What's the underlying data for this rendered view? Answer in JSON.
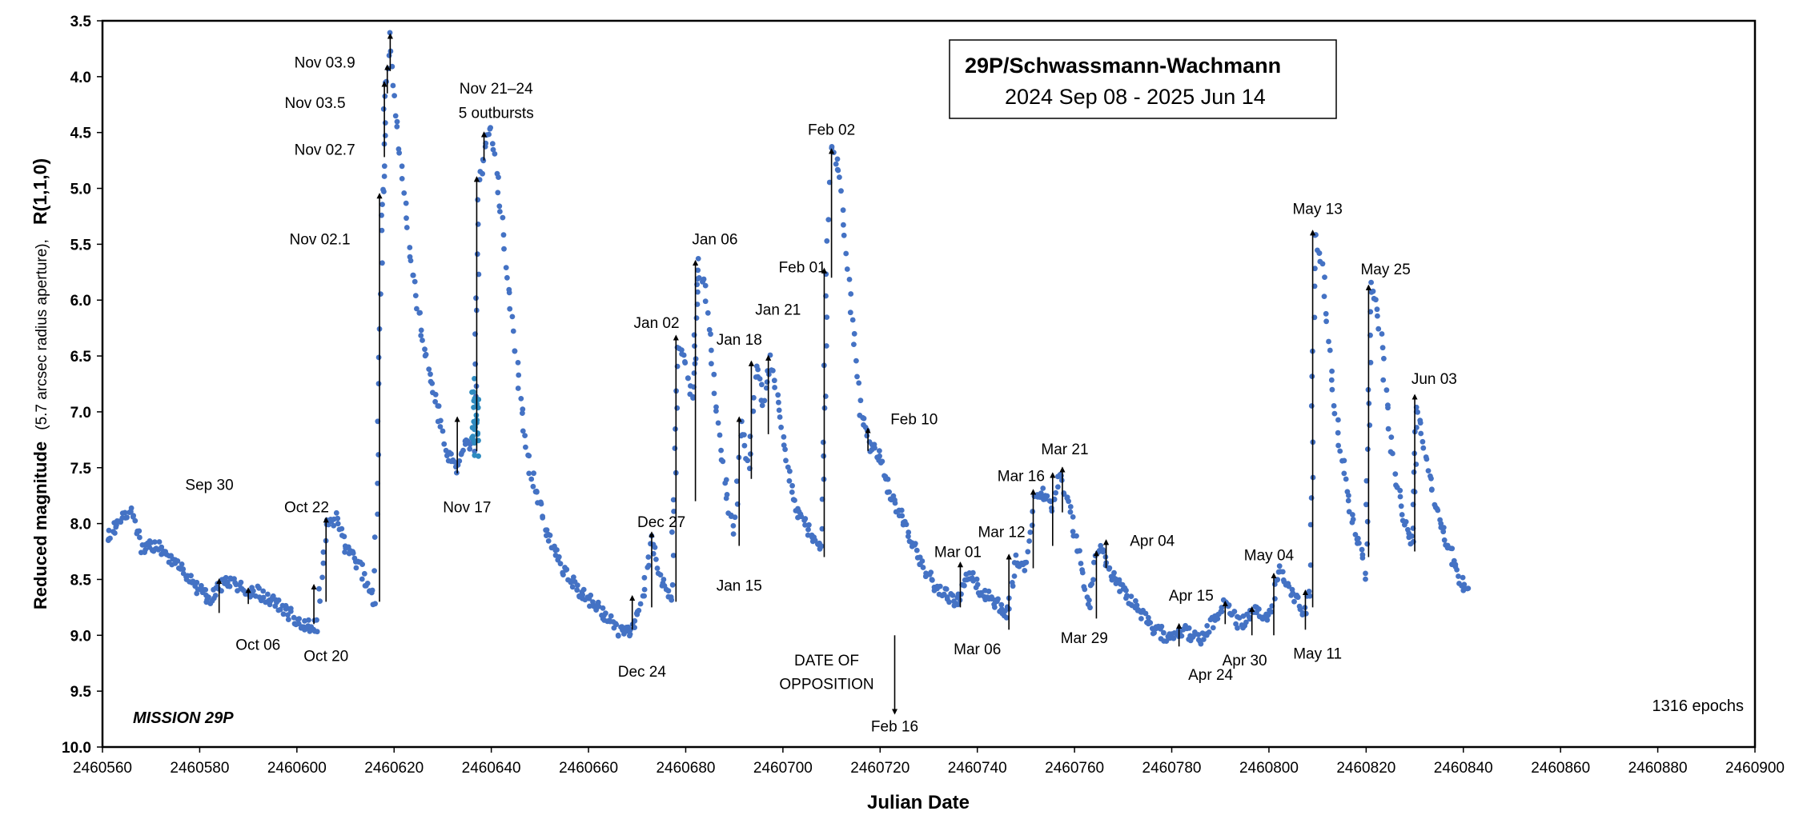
{
  "chart_data": {
    "type": "scatter",
    "title": "29P/Schwassmann-Wachmann",
    "subtitle": "2024 Sep 08 - 2025 Jun 14",
    "xlabel": "Julian Date",
    "ylabel_main": "Reduced magnitude",
    "ylabel_sub": "(5.7 arcsec radius aperture),",
    "ylabel_band": "R(1,1,0)",
    "xlim": [
      2460560,
      2460900
    ],
    "ylim": [
      10.0,
      3.5
    ],
    "y_inverted": true,
    "x_ticks": [
      2460560,
      2460580,
      2460600,
      2460620,
      2460640,
      2460660,
      2460680,
      2460700,
      2460720,
      2460740,
      2460760,
      2460780,
      2460800,
      2460820,
      2460840,
      2460860,
      2460880,
      2460900
    ],
    "y_ticks": [
      "3.5",
      "4.0",
      "4.5",
      "5.0",
      "5.5",
      "6.0",
      "6.5",
      "7.0",
      "7.5",
      "8.0",
      "8.5",
      "9.0",
      "9.5",
      "10.0"
    ],
    "grid": false,
    "epochs_label": "1316  epochs",
    "mission_label": "MISSION 29P",
    "point_color": "#4472C4",
    "highlight_color": "#2E8BC0",
    "trend": [
      [
        2460561,
        8.12
      ],
      [
        2460566,
        7.85
      ],
      [
        2460568,
        8.2
      ],
      [
        2460572,
        8.22
      ],
      [
        2460574,
        8.3
      ],
      [
        2460578,
        8.5
      ],
      [
        2460582,
        8.7
      ],
      [
        2460585,
        8.5
      ],
      [
        2460588,
        8.58
      ],
      [
        2460592,
        8.62
      ],
      [
        2460595,
        8.7
      ],
      [
        2460598,
        8.78
      ],
      [
        2460601,
        8.9
      ],
      [
        2460604,
        8.92
      ],
      [
        2460606,
        8.02
      ],
      [
        2460608,
        7.95
      ],
      [
        2460610,
        8.2
      ],
      [
        2460613,
        8.4
      ],
      [
        2460616,
        8.7
      ],
      [
        2460617.5,
        5.4
      ],
      [
        2460618.2,
        4.1
      ],
      [
        2460619,
        3.65
      ],
      [
        2460620,
        4.2
      ],
      [
        2460621.5,
        4.8
      ],
      [
        2460623,
        5.5
      ],
      [
        2460625,
        6.1
      ],
      [
        2460627,
        6.6
      ],
      [
        2460629,
        7.0
      ],
      [
        2460631,
        7.4
      ],
      [
        2460633,
        7.5
      ],
      [
        2460635,
        7.25
      ],
      [
        2460636.5,
        7.3
      ],
      [
        2460637.5,
        4.95
      ],
      [
        2460639,
        4.55
      ],
      [
        2460640,
        4.45
      ],
      [
        2460642,
        5.2
      ],
      [
        2460644,
        6.1
      ],
      [
        2460646,
        6.9
      ],
      [
        2460648,
        7.5
      ],
      [
        2460651,
        8.0
      ],
      [
        2460654,
        8.35
      ],
      [
        2460658,
        8.6
      ],
      [
        2460662,
        8.75
      ],
      [
        2460666,
        8.95
      ],
      [
        2460669,
        8.95
      ],
      [
        2460671,
        8.7
      ],
      [
        2460673,
        8.12
      ],
      [
        2460675,
        8.5
      ],
      [
        2460677,
        8.7
      ],
      [
        2460678.5,
        6.38
      ],
      [
        2460680,
        6.6
      ],
      [
        2460681.5,
        6.9
      ],
      [
        2460682.5,
        5.67
      ],
      [
        2460684,
        5.9
      ],
      [
        2460686,
        6.8
      ],
      [
        2460688,
        7.6
      ],
      [
        2460690,
        8.1
      ],
      [
        2460691.5,
        7.1
      ],
      [
        2460693,
        7.5
      ],
      [
        2460694.5,
        6.58
      ],
      [
        2460696,
        6.9
      ],
      [
        2460697.5,
        6.55
      ],
      [
        2460699,
        6.9
      ],
      [
        2460701,
        7.5
      ],
      [
        2460703,
        7.9
      ],
      [
        2460706,
        8.1
      ],
      [
        2460708,
        8.25
      ],
      [
        2460709,
        5.8
      ],
      [
        2460710,
        4.65
      ],
      [
        2460711.5,
        4.8
      ],
      [
        2460713,
        5.6
      ],
      [
        2460714.5,
        6.3
      ],
      [
        2460716,
        7.0
      ],
      [
        2460718,
        7.3
      ],
      [
        2460720,
        7.4
      ],
      [
        2460722,
        7.7
      ],
      [
        2460725,
        8.0
      ],
      [
        2460728,
        8.3
      ],
      [
        2460731,
        8.55
      ],
      [
        2460734,
        8.65
      ],
      [
        2460736,
        8.7
      ],
      [
        2460738,
        8.45
      ],
      [
        2460741,
        8.6
      ],
      [
        2460744,
        8.7
      ],
      [
        2460746,
        8.85
      ],
      [
        2460748,
        8.3
      ],
      [
        2460750,
        8.4
      ],
      [
        2460752,
        7.7
      ],
      [
        2460754,
        7.75
      ],
      [
        2460755.5,
        7.9
      ],
      [
        2460757,
        7.55
      ],
      [
        2460759,
        7.9
      ],
      [
        2460761,
        8.3
      ],
      [
        2460763,
        8.75
      ],
      [
        2460765,
        8.2
      ],
      [
        2460767,
        8.4
      ],
      [
        2460770,
        8.6
      ],
      [
        2460773,
        8.75
      ],
      [
        2460776,
        8.95
      ],
      [
        2460779,
        9.0
      ],
      [
        2460782,
        8.95
      ],
      [
        2460786,
        9.05
      ],
      [
        2460789,
        8.85
      ],
      [
        2460791,
        8.7
      ],
      [
        2460794,
        8.9
      ],
      [
        2460797,
        8.8
      ],
      [
        2460800,
        8.85
      ],
      [
        2460802,
        8.4
      ],
      [
        2460804,
        8.55
      ],
      [
        2460806,
        8.7
      ],
      [
        2460807.5,
        8.8
      ],
      [
        2460808.5,
        8.6
      ],
      [
        2460809.5,
        5.4
      ],
      [
        2460811,
        5.7
      ],
      [
        2460812.5,
        6.5
      ],
      [
        2460814,
        7.1
      ],
      [
        2460816,
        7.7
      ],
      [
        2460818,
        8.1
      ],
      [
        2460820,
        8.45
      ],
      [
        2460821,
        5.9
      ],
      [
        2460822.5,
        6.1
      ],
      [
        2460824,
        6.8
      ],
      [
        2460826,
        7.6
      ],
      [
        2460828,
        8.0
      ],
      [
        2460829.5,
        8.2
      ],
      [
        2460830.5,
        6.9
      ],
      [
        2460832,
        7.3
      ],
      [
        2460834,
        7.8
      ],
      [
        2460837,
        8.2
      ],
      [
        2460839,
        8.5
      ],
      [
        2460841,
        8.58
      ]
    ],
    "highlight_range": [
      2460636,
      2460637.5,
      6.7,
      7.4
    ],
    "outbursts": [
      {
        "label": "Sep 30",
        "x": 2460584,
        "y_from": 8.8,
        "y_to": 8.5,
        "lx": 2460582,
        "ly": 7.65,
        "anchor": "middle"
      },
      {
        "label": "Oct 06",
        "x": 2460590,
        "y_from": 8.72,
        "y_to": 8.58,
        "lx": 2460592,
        "ly": 9.08,
        "anchor": "middle"
      },
      {
        "label": "Oct 20",
        "x": 2460603.5,
        "y_from": 8.9,
        "y_to": 8.55,
        "lx": 2460606,
        "ly": 9.18,
        "anchor": "middle"
      },
      {
        "label": "Oct 22",
        "x": 2460606,
        "y_from": 8.7,
        "y_to": 7.95,
        "lx": 2460602,
        "ly": 7.85,
        "anchor": "middle"
      },
      {
        "label": "Nov 02.1",
        "x": 2460617,
        "y_from": 8.7,
        "y_to": 5.05,
        "lx": 2460611,
        "ly": 5.45,
        "anchor": "end"
      },
      {
        "label": "Nov 02.7",
        "x": 2460618,
        "y_from": 4.72,
        "y_to": 4.05,
        "lx": 2460612,
        "ly": 4.65,
        "anchor": "end"
      },
      {
        "label": "Nov 03.5",
        "x": 2460618.6,
        "y_from": 4.15,
        "y_to": 3.9,
        "lx": 2460610,
        "ly": 4.23,
        "anchor": "end"
      },
      {
        "label": "Nov 03.9",
        "x": 2460619.2,
        "y_from": 3.95,
        "y_to": 3.62,
        "lx": 2460612,
        "ly": 3.87,
        "anchor": "end"
      },
      {
        "label": "Nov 17",
        "x": 2460633,
        "y_from": 7.55,
        "y_to": 7.05,
        "lx": 2460635,
        "ly": 7.85,
        "anchor": "middle"
      },
      {
        "label": "Nov 21–24",
        "x": 2460637,
        "y_from": 7.35,
        "y_to": 4.9,
        "lx": 2460641,
        "ly": 4.1,
        "anchor": "middle"
      },
      {
        "label": "5 outbursts",
        "x": 2460638.5,
        "y_from": 4.75,
        "y_to": 4.5,
        "lx": 2460641,
        "ly": 4.32,
        "anchor": "middle"
      },
      {
        "label": "Dec 24",
        "x": 2460669,
        "y_from": 8.95,
        "y_to": 8.65,
        "lx": 2460671,
        "ly": 9.32,
        "anchor": "middle"
      },
      {
        "label": "Dec 27",
        "x": 2460673,
        "y_from": 8.75,
        "y_to": 8.08,
        "lx": 2460675,
        "ly": 7.98,
        "anchor": "middle"
      },
      {
        "label": "Jan 02",
        "x": 2460678,
        "y_from": 8.7,
        "y_to": 6.32,
        "lx": 2460674,
        "ly": 6.2,
        "anchor": "middle"
      },
      {
        "label": "Jan 06",
        "x": 2460682,
        "y_from": 7.8,
        "y_to": 5.65,
        "lx": 2460686,
        "ly": 5.45,
        "anchor": "middle"
      },
      {
        "label": "Jan 15",
        "x": 2460691,
        "y_from": 8.2,
        "y_to": 7.05,
        "lx": 2460691,
        "ly": 8.55,
        "anchor": "middle"
      },
      {
        "label": "Jan 18",
        "x": 2460693.5,
        "y_from": 7.6,
        "y_to": 6.55,
        "lx": 2460691,
        "ly": 6.35,
        "anchor": "middle"
      },
      {
        "label": "Jan 21",
        "x": 2460697,
        "y_from": 7.2,
        "y_to": 6.5,
        "lx": 2460699,
        "ly": 6.08,
        "anchor": "middle"
      },
      {
        "label": "Feb 01",
        "x": 2460708.5,
        "y_from": 8.3,
        "y_to": 5.72,
        "lx": 2460704,
        "ly": 5.7,
        "anchor": "middle"
      },
      {
        "label": "Feb 02",
        "x": 2460710,
        "y_from": 5.8,
        "y_to": 4.65,
        "lx": 2460710,
        "ly": 4.47,
        "anchor": "middle"
      },
      {
        "label": "Feb 10",
        "x": 2460717.5,
        "y_from": 7.35,
        "y_to": 7.15,
        "lx": 2460727,
        "ly": 7.06,
        "anchor": "middle"
      },
      {
        "label": "Mar 01",
        "x": 2460736.5,
        "y_from": 8.75,
        "y_to": 8.35,
        "lx": 2460736,
        "ly": 8.25,
        "anchor": "middle"
      },
      {
        "label": "Mar 06",
        "x": 2460746.5,
        "y_from": 8.95,
        "y_to": 8.28,
        "lx": 2460740,
        "ly": 9.12,
        "anchor": "middle"
      },
      {
        "label": "Mar 12",
        "x": 2460751.5,
        "y_from": 8.4,
        "y_to": 7.7,
        "lx": 2460745,
        "ly": 8.07,
        "anchor": "middle"
      },
      {
        "label": "Mar 16",
        "x": 2460755.5,
        "y_from": 8.2,
        "y_to": 7.55,
        "lx": 2460749,
        "ly": 7.57,
        "anchor": "middle"
      },
      {
        "label": "Mar 21",
        "x": 2460757.5,
        "y_from": 7.9,
        "y_to": 7.5,
        "lx": 2460758,
        "ly": 7.33,
        "anchor": "middle"
      },
      {
        "label": "Mar 29",
        "x": 2460764.5,
        "y_from": 8.85,
        "y_to": 8.25,
        "lx": 2460762,
        "ly": 9.02,
        "anchor": "middle"
      },
      {
        "label": "Apr 04",
        "x": 2460766.5,
        "y_from": 8.4,
        "y_to": 8.15,
        "lx": 2460776,
        "ly": 8.15,
        "anchor": "middle"
      },
      {
        "label": "Apr 15",
        "x": 2460781.5,
        "y_from": 9.1,
        "y_to": 8.9,
        "lx": 2460784,
        "ly": 8.64,
        "anchor": "middle"
      },
      {
        "label": "Apr 24",
        "x": 2460791,
        "y_from": 8.9,
        "y_to": 8.7,
        "lx": 2460788,
        "ly": 9.35,
        "anchor": "middle"
      },
      {
        "label": "Apr 30",
        "x": 2460796.5,
        "y_from": 9.0,
        "y_to": 8.75,
        "lx": 2460795,
        "ly": 9.22,
        "anchor": "middle"
      },
      {
        "label": "May 04",
        "x": 2460801,
        "y_from": 9.0,
        "y_to": 8.45,
        "lx": 2460800,
        "ly": 8.28,
        "anchor": "middle"
      },
      {
        "label": "May 11",
        "x": 2460807.5,
        "y_from": 8.95,
        "y_to": 8.6,
        "lx": 2460810,
        "ly": 9.16,
        "anchor": "middle"
      },
      {
        "label": "May 13",
        "x": 2460809,
        "y_from": 8.75,
        "y_to": 5.38,
        "lx": 2460810,
        "ly": 5.18,
        "anchor": "middle"
      },
      {
        "label": "May 25",
        "x": 2460820.5,
        "y_from": 8.3,
        "y_to": 5.87,
        "lx": 2460824,
        "ly": 5.72,
        "anchor": "middle"
      },
      {
        "label": "Jun 03",
        "x": 2460830,
        "y_from": 8.25,
        "y_to": 6.85,
        "lx": 2460834,
        "ly": 6.7,
        "anchor": "middle"
      }
    ],
    "opposition": {
      "label_line1": "DATE OF",
      "label_line2": "OPPOSITION",
      "date_label": "Feb 16",
      "x": 2460723,
      "y_from": 9.0,
      "y_to": 9.7
    }
  }
}
